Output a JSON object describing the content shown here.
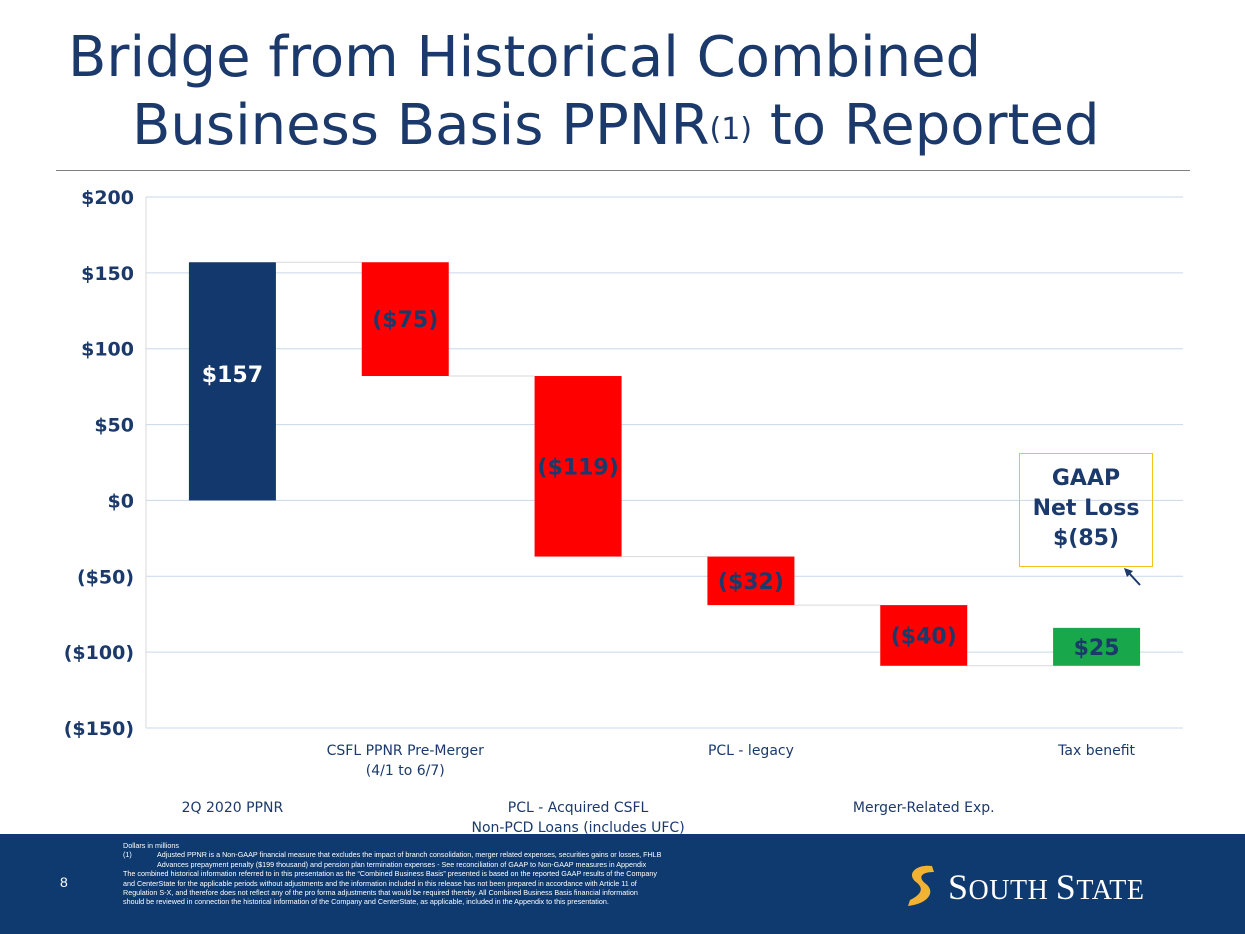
{
  "title": {
    "line1": "Bridge from Historical Combined",
    "line2": "Business Basis PPNR",
    "superscript": "(1)",
    "line2_suffix": " to Reported"
  },
  "chart_data": {
    "type": "bar",
    "subtype": "waterfall",
    "ylim": [
      -150,
      200
    ],
    "y_ticks": [
      200,
      150,
      100,
      50,
      0,
      -50,
      -100,
      -150
    ],
    "y_tick_labels": [
      "$200",
      "$150",
      "$100",
      "$50",
      "$0",
      "($50)",
      "($100)",
      "($150)"
    ],
    "grid": true,
    "categories": [
      "2Q 2020 PPNR",
      "CSFL PPNR Pre-Merger (4/1 to 6/7)",
      "PCL - Acquired CSFL Non-PCD Loans (includes UFC)",
      "PCL - legacy",
      "Merger-Related Exp.",
      "Tax benefit"
    ],
    "category_label_lines": [
      [
        "2Q 2020 PPNR"
      ],
      [
        "CSFL PPNR Pre-Merger",
        "(4/1 to 6/7)"
      ],
      [
        "PCL - Acquired CSFL",
        "Non-PCD Loans (includes UFC)"
      ],
      [
        "PCL - legacy"
      ],
      [
        "Merger-Related Exp."
      ],
      [
        "Tax benefit"
      ]
    ],
    "category_label_rows": [
      "low",
      "high",
      "low",
      "high",
      "low",
      "high"
    ],
    "values": [
      157,
      -75,
      -119,
      -32,
      -40,
      25
    ],
    "data_labels": [
      "$157",
      "($75)",
      "($119)",
      "($32)",
      "($40)",
      "$25"
    ],
    "colors": {
      "start": "#13386d",
      "decrease": "#ff0000",
      "increase": "#18a74a",
      "decrease_label": "#1b3a6b",
      "start_label": "#ffffff",
      "increase_label": "#1b3a6b",
      "grid": "#c9d7ea",
      "axis_text": "#1b3a6b"
    }
  },
  "callout": {
    "line1": "GAAP",
    "line2": "Net Loss",
    "line3": "$(85)"
  },
  "footer": {
    "page_number": "8",
    "notes_line1": "Dollars in millions",
    "fn_num": "(1)",
    "fn_line1": "Adjusted PPNR is a Non-GAAP financial measure that excludes the impact of branch consolidation, merger related expenses, securities gains or losses, FHLB",
    "fn_line2": "Advances prepayment penalty ($199 thousand) and pension plan termination expenses - See reconciliation of GAAP to Non-GAAP measures in Appendix",
    "body_line1": "The combined historical information referred to in this presentation as the “Combined Business Basis” presented is based on the reported GAAP results of the Company",
    "body_line2": "and CenterState for the applicable periods without adjustments and the information included in this release has not been prepared in accordance with Article 11 of",
    "body_line3": "Regulation S-X, and therefore does not reflect any of the pro forma adjustments that would be required thereby. All Combined Business Basis financial information",
    "body_line4": "should be reviewed in connection the historical information of the Company and CenterState, as applicable, included in the Appendix to this presentation.",
    "logo_text_big1": "S",
    "logo_text_small1": "OUTH ",
    "logo_text_big2": "S",
    "logo_text_small2": "TATE",
    "brand_color": "#0e3a70",
    "logo_mark_color": "#f2b233"
  }
}
